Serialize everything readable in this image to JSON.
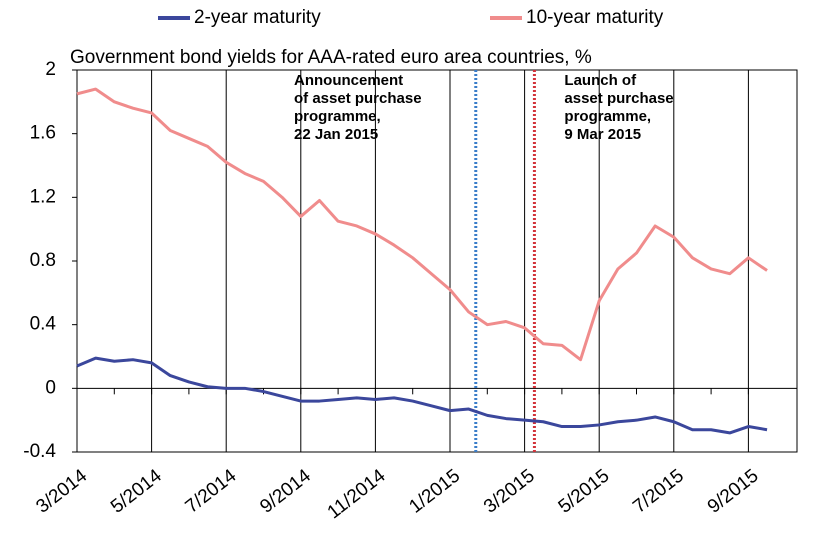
{
  "chart_data": {
    "type": "line",
    "title": "Government bond yields for AAA-rated euro area countries, %",
    "categories": [
      "3/2014",
      null,
      null,
      null,
      "5/2014",
      null,
      null,
      null,
      "7/2014",
      null,
      null,
      null,
      "9/2014",
      null,
      null,
      null,
      "11/2014",
      null,
      null,
      null,
      "1/2015",
      null,
      null,
      null,
      "3/2015",
      null,
      null,
      null,
      "5/2015",
      null,
      null,
      null,
      "7/2015",
      null,
      null,
      null,
      "9/2015",
      null
    ],
    "series": [
      {
        "name": "2-year maturity",
        "color": "#3b479c",
        "values": [
          0.14,
          0.19,
          0.17,
          0.18,
          0.16,
          0.08,
          0.04,
          0.01,
          0.0,
          0.0,
          -0.02,
          -0.05,
          -0.08,
          -0.08,
          -0.07,
          -0.06,
          -0.07,
          -0.06,
          -0.08,
          -0.11,
          -0.14,
          -0.13,
          -0.17,
          -0.19,
          -0.2,
          -0.21,
          -0.24,
          -0.24,
          -0.23,
          -0.21,
          -0.2,
          -0.18,
          -0.21,
          -0.26,
          -0.26,
          -0.28,
          -0.24,
          -0.26
        ]
      },
      {
        "name": "10-year maturity",
        "color": "#f08c8c",
        "values": [
          1.85,
          1.88,
          1.8,
          1.76,
          1.73,
          1.62,
          1.57,
          1.52,
          1.42,
          1.35,
          1.3,
          1.2,
          1.08,
          1.18,
          1.05,
          1.02,
          0.97,
          0.9,
          0.82,
          0.72,
          0.62,
          0.48,
          0.4,
          0.42,
          0.38,
          0.28,
          0.27,
          0.18,
          0.55,
          0.75,
          0.85,
          1.02,
          0.95,
          0.82,
          0.75,
          0.72,
          0.82,
          0.74
        ]
      }
    ],
    "ylim": [
      -0.4,
      2
    ],
    "yticks": [
      -0.4,
      0,
      0.4,
      0.8,
      1.2,
      1.6,
      2
    ],
    "grid": true,
    "legend": "top",
    "annotations": [
      {
        "lines": [
          "Announcement",
          "of asset purchase",
          "programme,",
          "22 Jan 2015"
        ],
        "color": "#3a7dc9"
      },
      {
        "lines": [
          "Launch of",
          "asset purchase",
          "programme,",
          "9 Mar 2015"
        ],
        "color": "#d2333a"
      }
    ]
  }
}
